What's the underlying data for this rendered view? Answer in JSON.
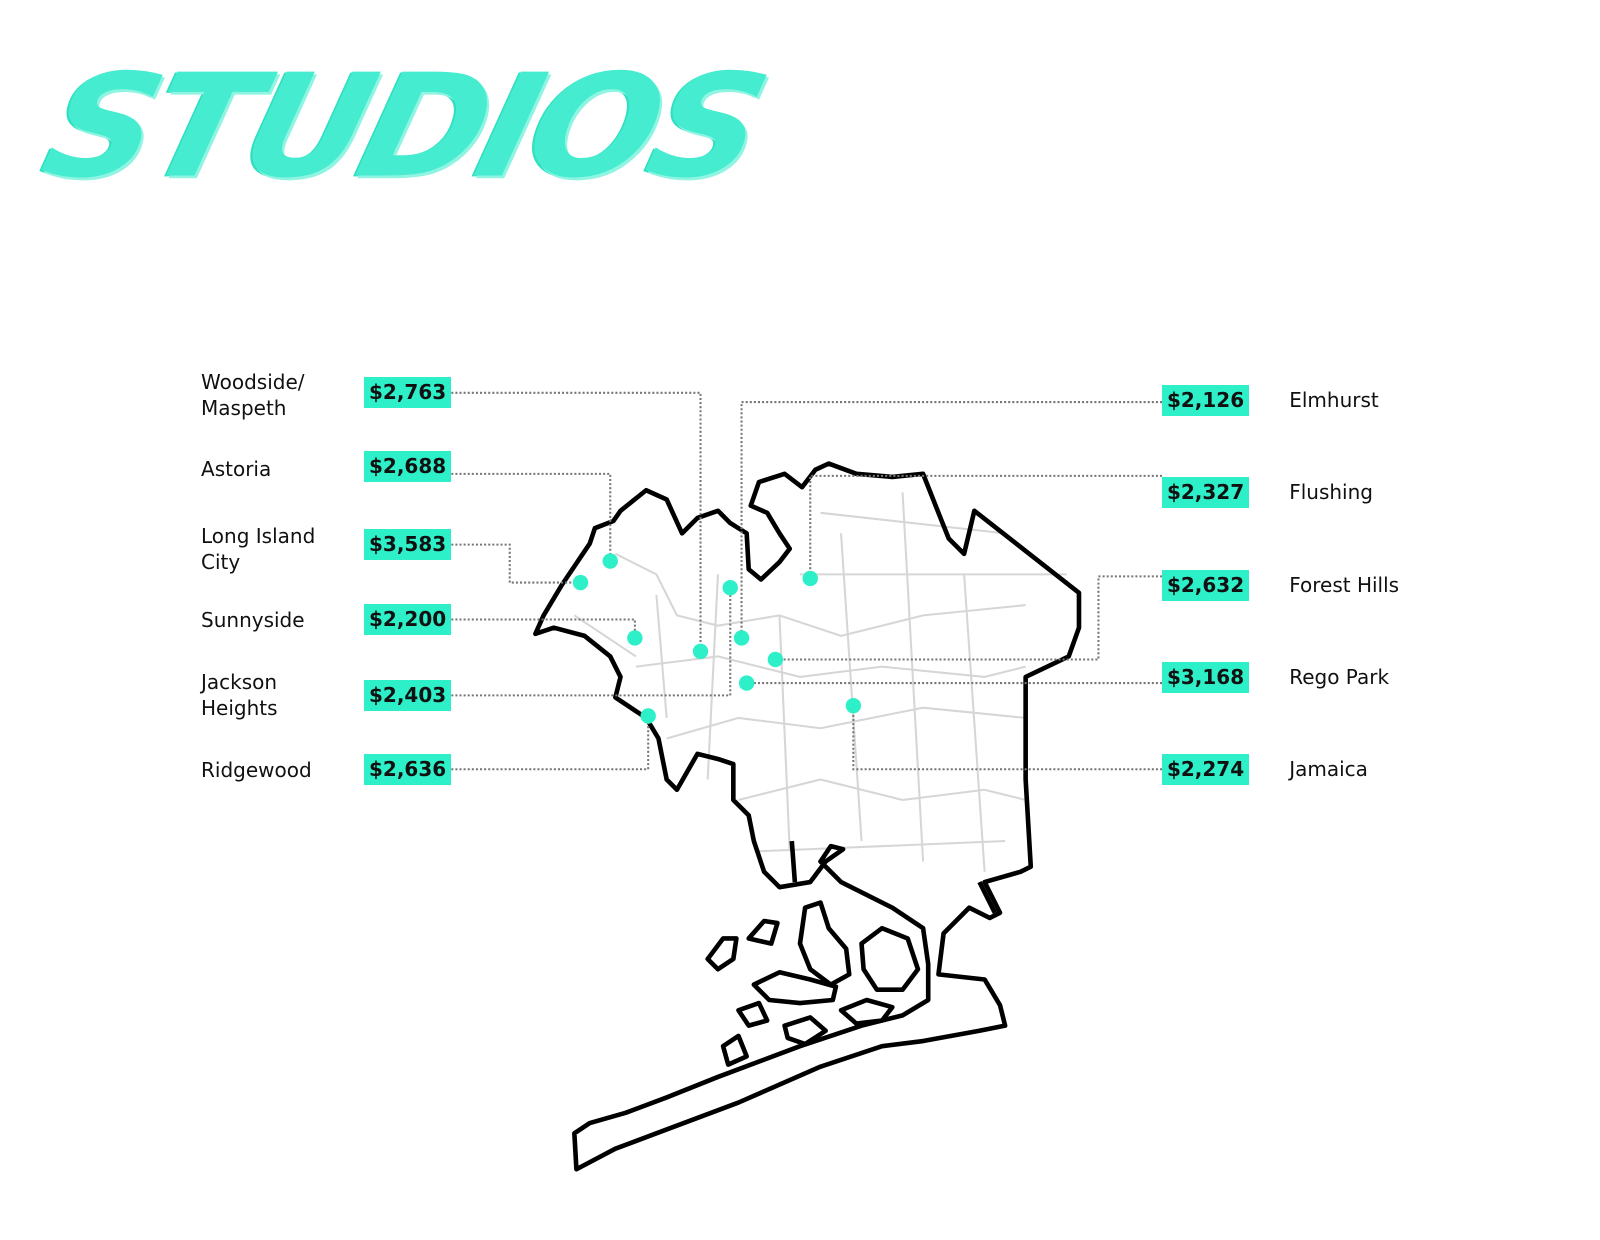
{
  "title": "STUDIOS",
  "accent_color": "#2df0c8",
  "left": [
    {
      "name": "Woodside/\nMaspeth",
      "line1": "Woodside/",
      "line2": "Maspeth",
      "price": "$2,763"
    },
    {
      "name": "Astoria",
      "line1": "Astoria",
      "line2": "",
      "price": "$2,688"
    },
    {
      "name": "Long Island City",
      "line1": "Long Island",
      "line2": "City",
      "price": "$3,583"
    },
    {
      "name": "Sunnyside",
      "line1": "Sunnyside",
      "line2": "",
      "price": "$2,200"
    },
    {
      "name": "Jackson Heights",
      "line1": "Jackson",
      "line2": "Heights",
      "price": "$2,403"
    },
    {
      "name": "Ridgewood",
      "line1": "Ridgewood",
      "line2": "",
      "price": "$2,636"
    }
  ],
  "right": [
    {
      "name": "Elmhurst",
      "price": "$2,126"
    },
    {
      "name": "Flushing",
      "price": "$2,327"
    },
    {
      "name": "Forest Hills",
      "price": "$2,632"
    },
    {
      "name": "Rego Park",
      "price": "$3,168"
    },
    {
      "name": "Jamaica",
      "price": "$2,274"
    }
  ]
}
